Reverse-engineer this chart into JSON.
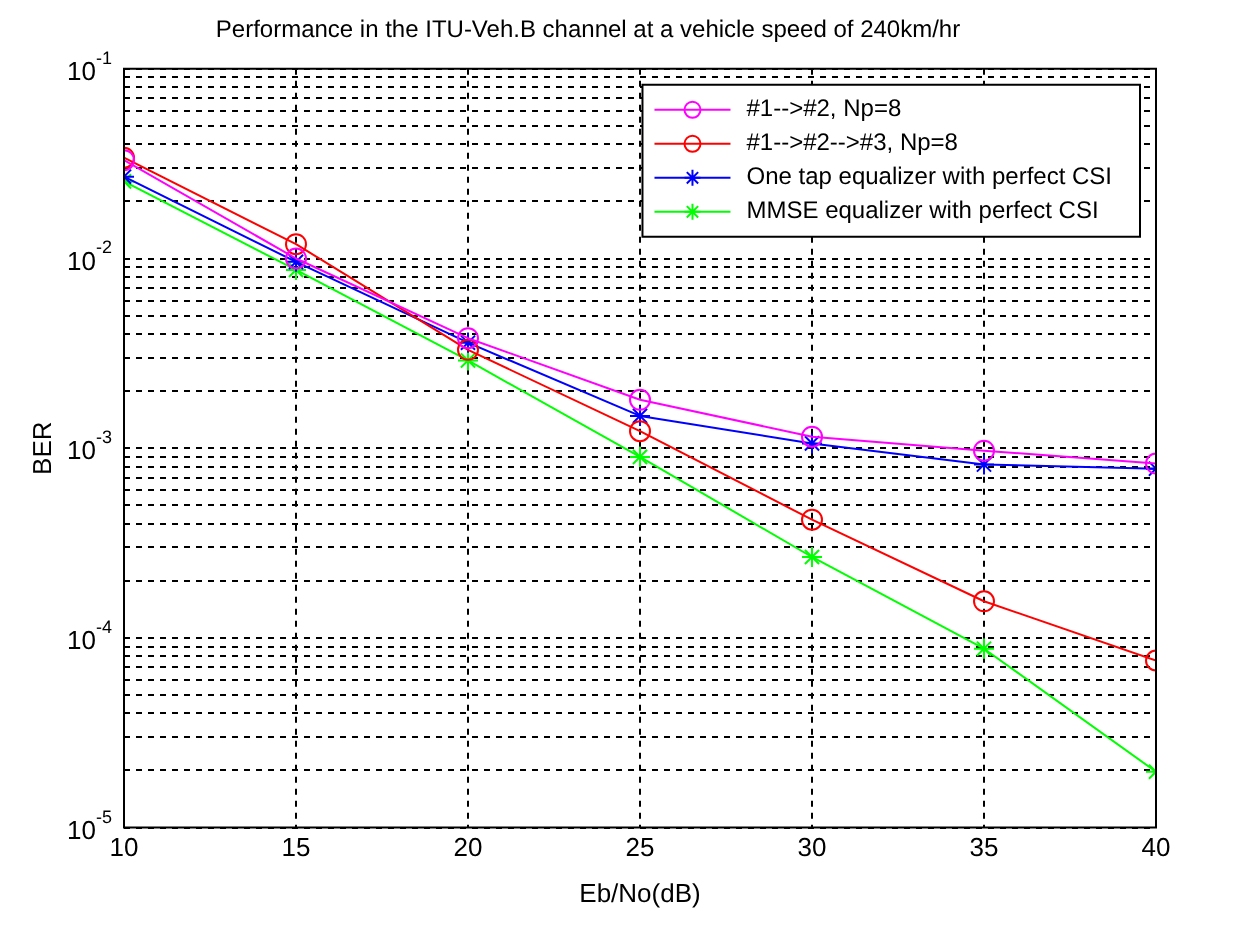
{
  "chart_data": {
    "type": "line",
    "title": "Performance in the ITU-Veh.B channel at a vehicle speed of 240km/hr",
    "xlabel": "Eb/No(dB)",
    "ylabel": "BER",
    "x": [
      10,
      15,
      20,
      25,
      30,
      35,
      40
    ],
    "series": [
      {
        "name": "#1-->#2, Np=8",
        "color": "#ff00ff",
        "marker": "circle",
        "values": [
          0.033,
          0.01,
          0.0038,
          0.0018,
          0.00115,
          0.00097,
          0.00083
        ]
      },
      {
        "name": "#1-->#2-->#3, Np=8",
        "color": "#ff0000",
        "marker": "circle",
        "values": [
          0.034,
          0.0119,
          0.0033,
          0.00123,
          0.00042,
          0.000156,
          7.6e-05
        ]
      },
      {
        "name": "One tap equalizer with perfect CSI",
        "color": "#0000ff",
        "marker": "cross",
        "values": [
          0.027,
          0.0096,
          0.0036,
          0.00148,
          0.00106,
          0.00082,
          0.00078
        ]
      },
      {
        "name": "MMSE equalizer with perfect CSI",
        "color": "#00ff00",
        "marker": "cross",
        "values": [
          0.0255,
          0.0087,
          0.0029,
          0.0009,
          0.000267,
          8.77e-05,
          1.97e-05
        ]
      }
    ],
    "xlim": [
      10,
      40
    ],
    "xticks": [
      10,
      15,
      20,
      25,
      30,
      35,
      40
    ],
    "ylim": [
      1e-05,
      0.1
    ],
    "yticks": [
      {
        "value": 1e-05,
        "label": "10$^{-5}$"
      },
      {
        "value": 2e-05,
        "label": null
      },
      {
        "value": 3e-05,
        "label": null
      },
      {
        "value": 4e-05,
        "label": null
      },
      {
        "value": 5e-05,
        "label": null
      },
      {
        "value": 6e-05,
        "label": null
      },
      {
        "value": 7e-05,
        "label": null
      },
      {
        "value": 8e-05,
        "label": null
      },
      {
        "value": 9e-05,
        "label": null
      },
      {
        "value": 0.0001,
        "label": "10$^{-4}$"
      },
      {
        "value": 0.0002,
        "label": null
      },
      {
        "value": 0.0003,
        "label": null
      },
      {
        "value": 0.0004,
        "label": null
      },
      {
        "value": 0.0005,
        "label": null
      },
      {
        "value": 0.0006,
        "label": null
      },
      {
        "value": 0.0007,
        "label": null
      },
      {
        "value": 0.0008,
        "label": null
      },
      {
        "value": 0.0009,
        "label": null
      },
      {
        "value": 0.001,
        "label": "10$^{-3}$"
      },
      {
        "value": 0.002,
        "label": null
      },
      {
        "value": 0.003,
        "label": null
      },
      {
        "value": 0.004,
        "label": null
      },
      {
        "value": 0.005,
        "label": null
      },
      {
        "value": 0.006,
        "label": null
      },
      {
        "value": 0.007,
        "label": null
      },
      {
        "value": 0.008,
        "label": null
      },
      {
        "value": 0.009,
        "label": null
      },
      {
        "value": 0.01,
        "label": "10$^{-2}$"
      },
      {
        "value": 0.02,
        "label": null
      },
      {
        "value": 0.03,
        "label": null
      },
      {
        "value": 0.04,
        "label": null
      },
      {
        "value": 0.05,
        "label": null
      },
      {
        "value": 0.06,
        "label": null
      },
      {
        "value": 0.07,
        "label": null
      },
      {
        "value": 0.08,
        "label": null
      },
      {
        "value": 0.09,
        "label": null
      },
      {
        "value": 0.1,
        "label": "10$^{-1}$"
      }
    ],
    "log": "y",
    "grid": true,
    "legend": "top right",
    "line_style": "solid"
  }
}
